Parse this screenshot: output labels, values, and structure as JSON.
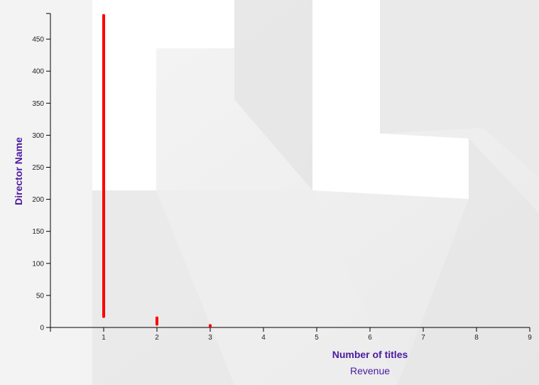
{
  "chart_data": {
    "type": "scatter",
    "xlabel": "Number of titles",
    "xsublabel": "Revenue",
    "ylabel": "Director Name",
    "xlim": [
      0,
      9
    ],
    "ylim": [
      0,
      490
    ],
    "x_ticks": [
      1,
      2,
      3,
      4,
      5,
      6,
      7,
      8,
      9
    ],
    "y_ticks": [
      0,
      50,
      100,
      150,
      200,
      250,
      300,
      350,
      400,
      450
    ],
    "point_color": "#ff0000",
    "axis_color": "#000000",
    "label_color": "#4b1aa0",
    "grid": false,
    "segments": [
      {
        "x": 1,
        "y_min": 17,
        "y_max": 487
      },
      {
        "x": 2,
        "y_min": 5,
        "y_max": 15
      },
      {
        "x": 3,
        "y_min": 2,
        "y_max": 3
      }
    ]
  }
}
